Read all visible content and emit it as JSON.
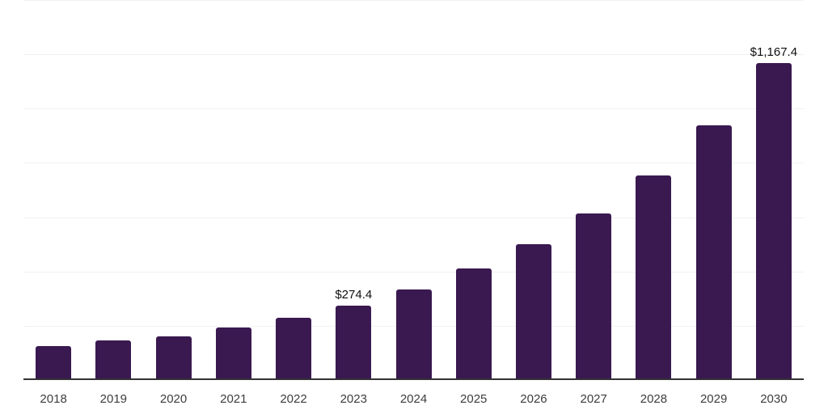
{
  "chart_data": {
    "type": "bar",
    "categories": [
      "2018",
      "2019",
      "2020",
      "2021",
      "2022",
      "2023",
      "2024",
      "2025",
      "2026",
      "2027",
      "2028",
      "2029",
      "2030"
    ],
    "values": [
      125,
      146,
      160,
      194,
      230,
      274.4,
      333,
      410,
      500,
      613,
      755,
      938,
      1167.4
    ],
    "data_labels": [
      {
        "index": 5,
        "text": "$274.4"
      },
      {
        "index": 12,
        "text": "$1,167.4"
      }
    ],
    "title": "",
    "xlabel": "",
    "ylabel": "",
    "ylim": [
      0,
      1400
    ],
    "gridline_step": 200,
    "grid": "horizontal",
    "legend": "none",
    "y_tick_labels_visible": false
  },
  "colors": {
    "bar": "#391950",
    "axis_line": "#333333",
    "gridline": "#f1f1f1",
    "tick_label": "#3d3d3d",
    "data_label": "#101010",
    "background": "#ffffff"
  }
}
